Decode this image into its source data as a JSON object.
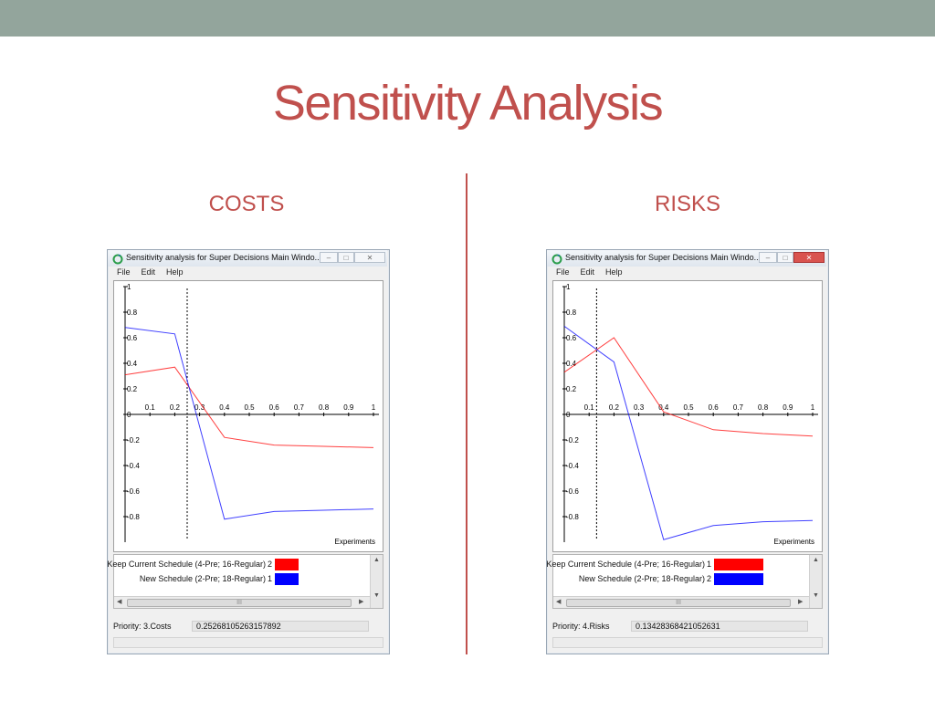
{
  "slide": {
    "title": "Sensitivity Analysis",
    "left_heading": "COSTS",
    "right_heading": "RISKS"
  },
  "colors": {
    "accent": "#c0504d",
    "band": "#93a59c",
    "series_red": "#ff0000",
    "series_blue": "#0000ff"
  },
  "windows": [
    {
      "title": "Sensitivity analysis for Super Decisions Main Windo...",
      "menu": [
        "File",
        "Edit",
        "Help"
      ],
      "legend": [
        {
          "name": "Keep Current Schedule (4-Pre; 16-Regular)",
          "rank": "2",
          "color": "#ff0000"
        },
        {
          "name": "New Schedule (2-Pre; 18-Regular)",
          "rank": "1",
          "color": "#0000ff"
        }
      ],
      "status_label": "Priority: 3.Costs",
      "status_value": "0.25268105263157892",
      "scroll_thumb": "III",
      "icons": [
        "app-refresh-icon",
        "minimize-icon",
        "maximize-icon",
        "close-icon"
      ]
    },
    {
      "title": "Sensitivity analysis for Super Decisions Main Windo...",
      "menu": [
        "File",
        "Edit",
        "Help"
      ],
      "legend": [
        {
          "name": "Keep Current Schedule (4-Pre; 16-Regular)",
          "rank": "1",
          "color": "#ff0000"
        },
        {
          "name": "New Schedule (2-Pre; 18-Regular)",
          "rank": "2",
          "color": "#0000ff"
        }
      ],
      "status_label": "Priority: 4.Risks",
      "status_value": "0.13428368421052631",
      "scroll_thumb": "III",
      "icons": [
        "app-refresh-icon",
        "minimize-icon",
        "maximize-icon",
        "close-icon"
      ]
    }
  ],
  "chart_data": [
    {
      "type": "line",
      "xlabel": "Experiments",
      "xlim": [
        0,
        1
      ],
      "ylim": [
        -1,
        1
      ],
      "x_ticks": [
        "0.1",
        "0.2",
        "0.3",
        "0.4",
        "0.5",
        "0.6",
        "0.7",
        "0.8",
        "0.9",
        "1"
      ],
      "y_ticks": [
        "1",
        "0.8",
        "0.6",
        "0.4",
        "0.2",
        "0",
        "-0.2",
        "-0.4",
        "-0.6",
        "-0.8"
      ],
      "marker_line_x": 0.25,
      "series": [
        {
          "color": "#ff0000",
          "x": [
            0,
            0.2,
            0.4,
            0.6,
            0.8,
            1.0
          ],
          "y": [
            0.31,
            0.37,
            -0.18,
            -0.24,
            -0.25,
            -0.26
          ]
        },
        {
          "color": "#0000ff",
          "x": [
            0,
            0.2,
            0.4,
            0.6,
            0.8,
            1.0
          ],
          "y": [
            0.68,
            0.63,
            -0.82,
            -0.76,
            -0.75,
            -0.74
          ]
        }
      ]
    },
    {
      "type": "line",
      "xlabel": "Experiments",
      "xlim": [
        0,
        1
      ],
      "ylim": [
        -1,
        1
      ],
      "x_ticks": [
        "0.1",
        "0.2",
        "0.3",
        "0.4",
        "0.5",
        "0.6",
        "0.7",
        "0.8",
        "0.9",
        "1"
      ],
      "y_ticks": [
        "1",
        "0.8",
        "0.6",
        "0.4",
        "0.2",
        "0",
        "-0.2",
        "-0.4",
        "-0.6",
        "-0.8"
      ],
      "marker_line_x": 0.13,
      "series": [
        {
          "color": "#ff0000",
          "x": [
            0,
            0.2,
            0.4,
            0.6,
            0.8,
            1.0
          ],
          "y": [
            0.33,
            0.6,
            0.02,
            -0.12,
            -0.15,
            -0.17
          ]
        },
        {
          "color": "#0000ff",
          "x": [
            0,
            0.2,
            0.4,
            0.6,
            0.8,
            1.0
          ],
          "y": [
            0.69,
            0.41,
            -0.98,
            -0.87,
            -0.84,
            -0.83
          ]
        }
      ]
    }
  ]
}
